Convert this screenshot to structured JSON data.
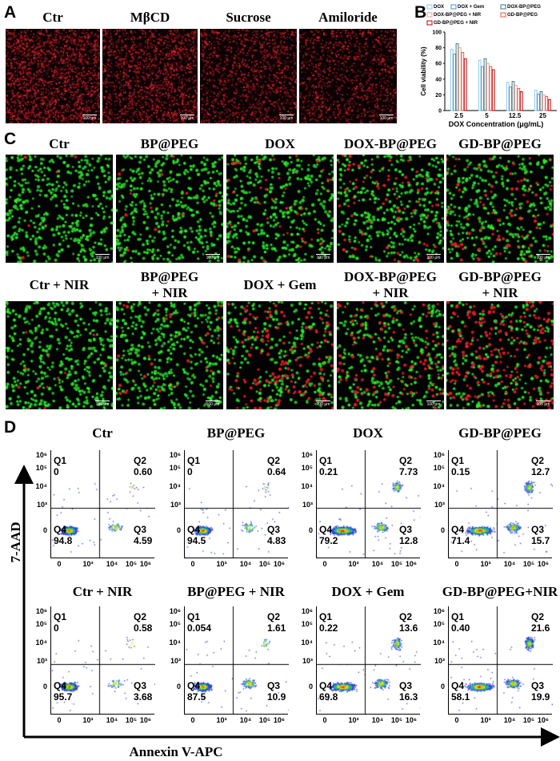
{
  "panel_letters": {
    "a": "A",
    "b": "B",
    "c": "C",
    "d": "D"
  },
  "panel_a": {
    "labels": [
      "Ctr",
      "MβCD",
      "Sucrose",
      "Amiloride"
    ],
    "scale": [
      "100 μm",
      "100 μm",
      "100 μm",
      "100 μm"
    ],
    "colors": {
      "red": "#e0202a",
      "background": "#0a0204"
    }
  },
  "panel_b": {
    "chart_data": {
      "type": "bar",
      "categories": [
        "2.5",
        "5",
        "12.5",
        "25"
      ],
      "series": [
        {
          "name": "DOX",
          "color": "#8ecaf0",
          "values": [
            78,
            64,
            36,
            26
          ]
        },
        {
          "name": "DOX + Gem",
          "color": "#4a8fd6",
          "values": [
            72,
            56,
            30,
            21
          ]
        },
        {
          "name": "DOX-BP@PEG",
          "color": "#3a7a7a",
          "values": [
            85,
            66,
            37,
            24
          ]
        },
        {
          "name": "DOX-BP@PEG + NIR",
          "color": "#f0a0a0",
          "values": [
            80,
            60,
            32,
            20
          ]
        },
        {
          "name": "GD-BP@PEG",
          "color": "#e05a3a",
          "values": [
            74,
            56,
            28,
            18
          ]
        },
        {
          "name": "GD-BP@PEG + NIR",
          "color": "#c00000",
          "values": [
            66,
            52,
            24,
            14
          ]
        }
      ],
      "xlabel": "DOX Concentration (μg/mL)",
      "ylabel": "Cell viability (%)",
      "ylim": [
        0,
        100
      ],
      "yticks": [
        "0",
        "20",
        "40",
        "60",
        "80",
        "100"
      ]
    }
  },
  "panel_c": {
    "row1": [
      "Ctr",
      "BP@PEG",
      "DOX",
      "DOX-BP@PEG",
      "GD-BP@PEG"
    ],
    "row2": [
      {
        "line1": "Ctr + NIR",
        "line2": ""
      },
      {
        "line1": "BP@PEG",
        "line2": "+ NIR"
      },
      {
        "line1": "DOX + Gem",
        "line2": ""
      },
      {
        "line1": "DOX-BP@PEG",
        "line2": "+ NIR"
      },
      {
        "line1": "GD-BP@PEG",
        "line2": "+ NIR"
      }
    ],
    "red_fraction": [
      0.02,
      0.03,
      0.12,
      0.18,
      0.22,
      0.02,
      0.08,
      0.4,
      0.3,
      0.55
    ],
    "scale": "100 μm"
  },
  "panel_d": {
    "titles": [
      "Ctr",
      "BP@PEG",
      "DOX",
      "GD-BP@PEG",
      "Ctr + NIR",
      "BP@PEG + NIR",
      "DOX + Gem",
      "GD-BP@PEG+NIR"
    ],
    "quadrant_names": {
      "q1": "Q1",
      "q2": "Q2",
      "q3": "Q3",
      "q4": "Q4"
    },
    "values": [
      {
        "q1": "0",
        "q2": "0.60",
        "q3": "4.59",
        "q4": "94.8"
      },
      {
        "q1": "0",
        "q2": "0.64",
        "q3": "4.83",
        "q4": "94.5"
      },
      {
        "q1": "0.21",
        "q2": "7.73",
        "q3": "12.8",
        "q4": "79.2"
      },
      {
        "q1": "0.15",
        "q2": "12.7",
        "q3": "15.7",
        "q4": "71.4"
      },
      {
        "q1": "0",
        "q2": "0.58",
        "q3": "3.68",
        "q4": "95.7"
      },
      {
        "q1": "0.054",
        "q2": "1.61",
        "q3": "10.9",
        "q4": "87.5"
      },
      {
        "q1": "0.22",
        "q2": "13.6",
        "q3": "16.3",
        "q4": "69.8"
      },
      {
        "q1": "0.40",
        "q2": "21.6",
        "q3": "19.9",
        "q4": "58.1"
      }
    ],
    "x_axis_label": "Annexin V-APC",
    "y_axis_label": "7-AAD",
    "y_ticks": [
      "10⁶",
      "10⁵",
      "10⁴",
      "10³",
      "0"
    ],
    "x_ticks": [
      "0",
      "10³",
      "10⁴",
      "10⁵",
      "10⁶"
    ]
  }
}
